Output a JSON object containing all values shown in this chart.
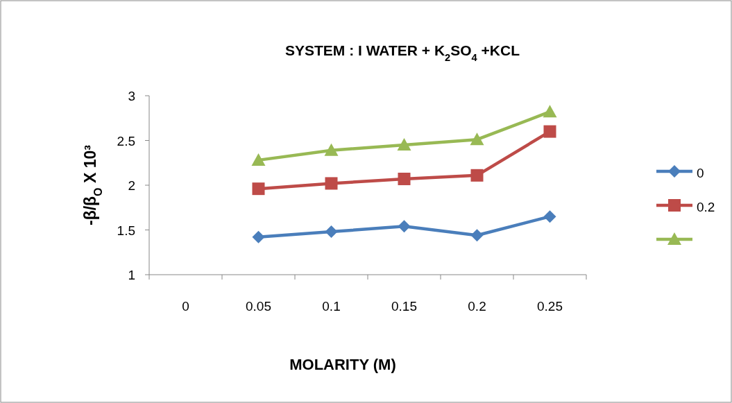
{
  "chart_data": {
    "type": "line",
    "title": "SYSTEM : I WATER + K$_{2}$SO$_{4}$ +KCL",
    "xlabel": "MOLARITY (M)",
    "ylabel": "-β/β$_{O}$ X 10³",
    "categories": [
      "0",
      "0.05",
      "0.1",
      "0.15",
      "0.2",
      "0.25"
    ],
    "series": [
      {
        "name": "0",
        "color": "#4a7ebb",
        "marker": "diamond",
        "values": [
          null,
          1.42,
          1.48,
          1.54,
          1.44,
          1.65
        ]
      },
      {
        "name": "0.2",
        "color": "#be4b48",
        "marker": "square",
        "values": [
          null,
          1.96,
          2.02,
          2.07,
          2.11,
          2.6
        ]
      },
      {
        "color": "#98b954",
        "marker": "triangle",
        "values": [
          null,
          2.28,
          2.39,
          2.45,
          2.51,
          2.82
        ]
      }
    ],
    "ylim": [
      1,
      3
    ],
    "yticks": [
      1,
      1.5,
      2,
      2.5,
      3
    ],
    "grid": false,
    "legend": "right",
    "line_style": "solid"
  }
}
